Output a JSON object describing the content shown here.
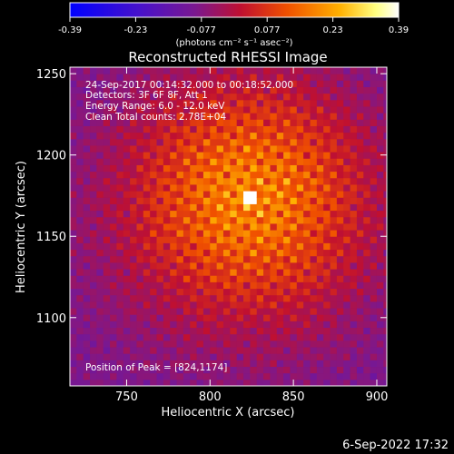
{
  "chart_data": {
    "type": "heatmap",
    "title": "Reconstructed RHESSI Image",
    "xlabel": "Heliocentric X (arcsec)",
    "ylabel": "Heliocentric Y (arcsec)",
    "xlim": [
      716,
      906
    ],
    "ylim": [
      1058,
      1254
    ],
    "xticks": [
      750,
      800,
      850,
      900
    ],
    "yticks": [
      1100,
      1150,
      1200,
      1250
    ],
    "colorbar": {
      "colormap": "blue-purple-red-yellow-white",
      "range": [
        -0.39,
        0.39
      ],
      "ticks": [
        "-0.39",
        "-0.23",
        "-0.077",
        "0.077",
        "0.23",
        "0.39"
      ],
      "units": "(photons cm⁻² s⁻¹ asec⁻²)",
      "position": "top"
    },
    "annotations": [
      "24-Sep-2017 00:14:32.000 to 00:18:52.000",
      "Detectors: 3F 6F 8F, Att 1",
      "Energy Range: 6.0 - 12.0 keV",
      "Clean    Total counts: 2.78E+04"
    ],
    "peak_label": "Position of Peak = [824,1174]",
    "peak": {
      "x": 824,
      "y": 1174,
      "value": 0.39
    },
    "footer_date": "6-Sep-2022 17:32",
    "colors": {
      "background": "#000000",
      "cmap_stops": [
        "#0000ff",
        "#6a1fb0",
        "#a01048",
        "#e02a00",
        "#ff9a00",
        "#ffff70",
        "#ffffff"
      ]
    }
  }
}
